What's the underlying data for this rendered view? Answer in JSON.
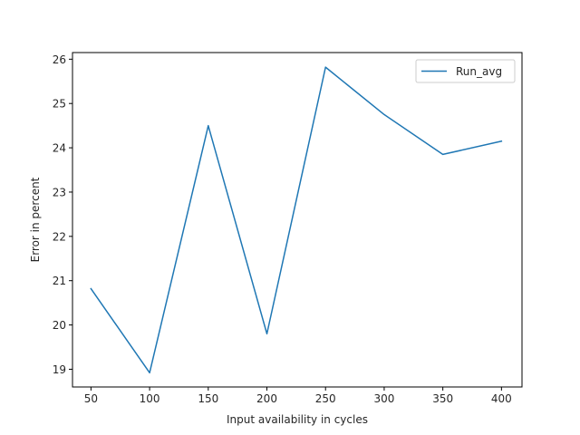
{
  "chart_data": {
    "type": "line",
    "title": "",
    "xlabel": "Input availability in cycles",
    "ylabel": "Error in percent",
    "x": [
      50,
      100,
      150,
      200,
      250,
      300,
      350,
      400
    ],
    "series": [
      {
        "name": "Run_avg",
        "values": [
          20.82,
          18.92,
          24.5,
          19.8,
          25.82,
          24.75,
          23.85,
          24.15
        ]
      }
    ],
    "xlim": [
      34.25,
      417.5
    ],
    "ylim": [
      18.6,
      26.15
    ],
    "xticks": [
      50,
      100,
      150,
      200,
      250,
      300,
      350,
      400
    ],
    "yticks": [
      19,
      20,
      21,
      22,
      23,
      24,
      25,
      26
    ],
    "grid": false,
    "legend_position": "top-right",
    "colors": {
      "series": "#1f77b4",
      "axes": "#000000",
      "text": "#262626"
    }
  }
}
